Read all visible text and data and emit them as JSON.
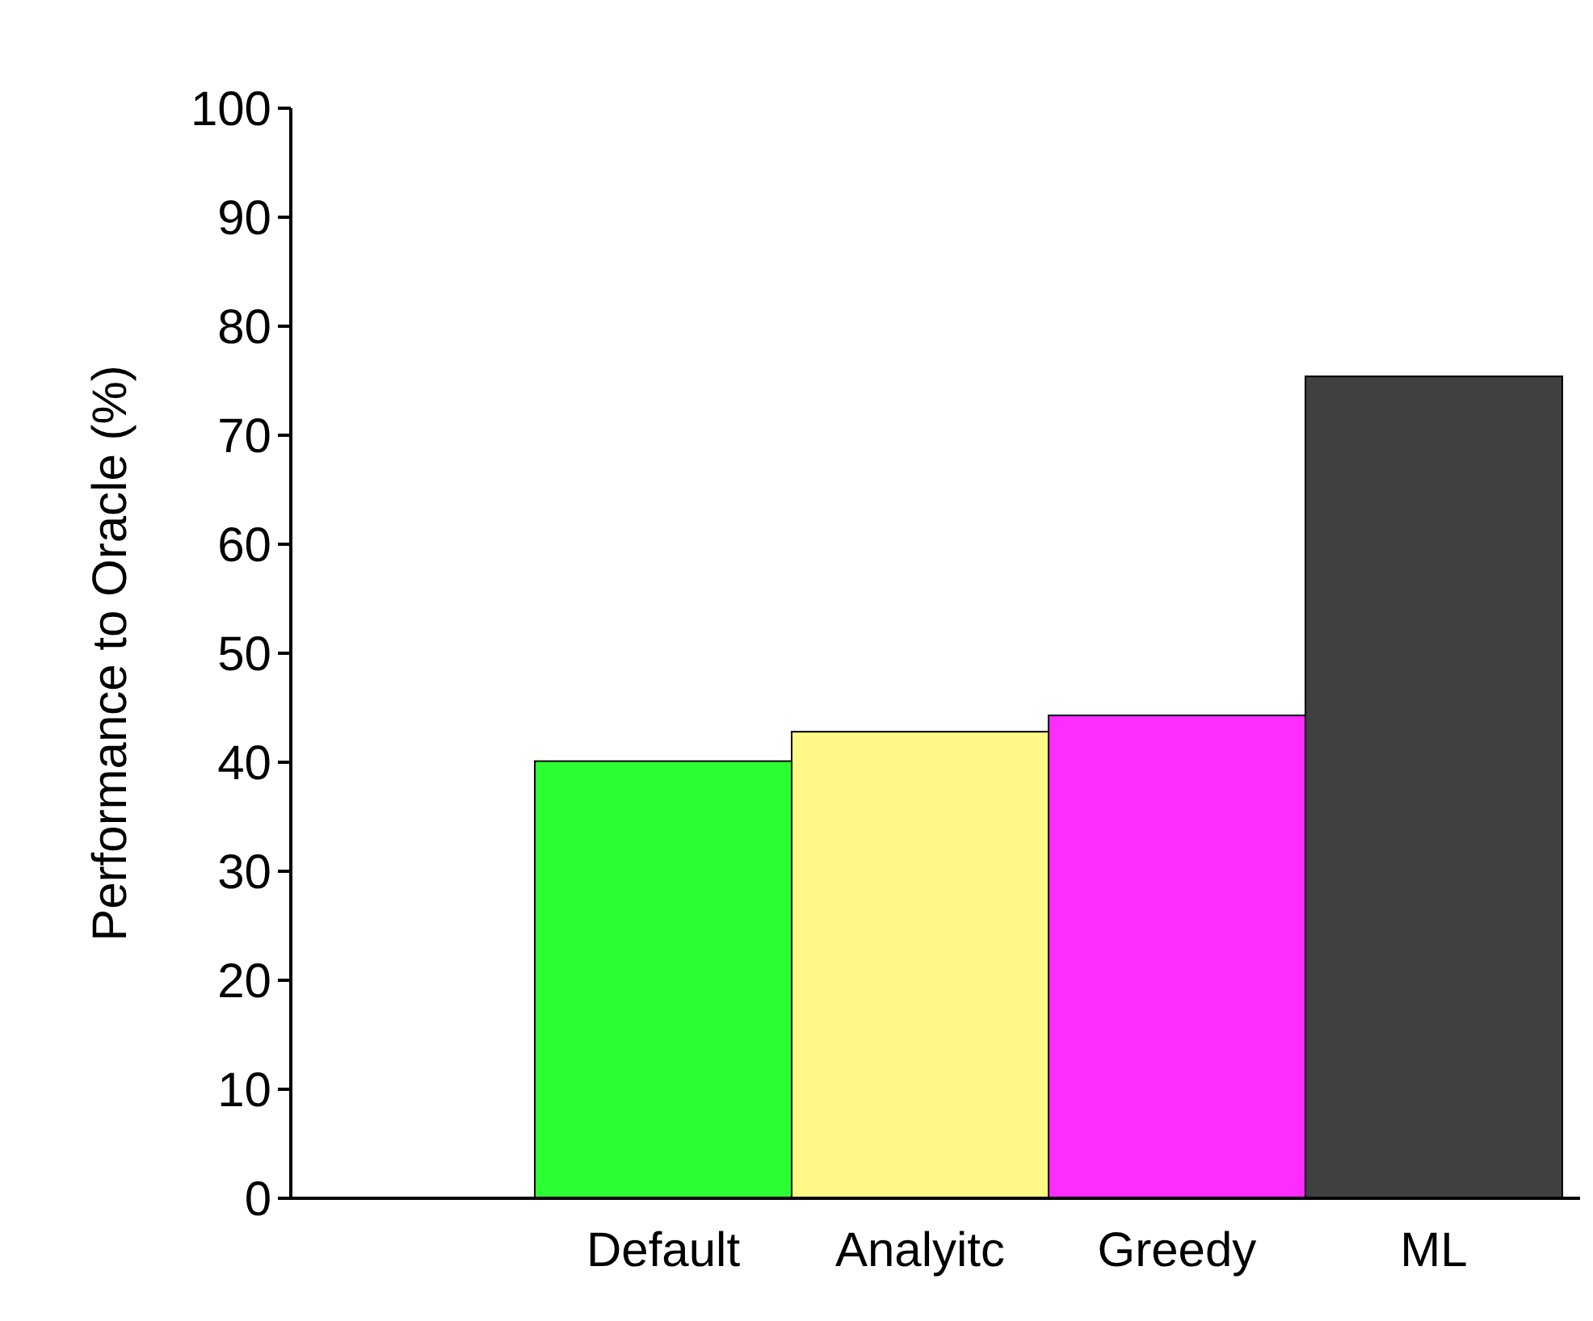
{
  "chart_data": {
    "type": "bar",
    "ylabel": "Performance to Oracle (%)",
    "categories": [
      "Default",
      "Analyitc",
      "Greedy",
      "ML"
    ],
    "values": [
      40.1,
      42.8,
      44.3,
      75.4
    ],
    "colors": [
      "#2bff33",
      "#fffa88",
      "#ff2cff",
      "#404040"
    ],
    "ylim": [
      0,
      100
    ],
    "yticks": [
      0,
      10,
      20,
      30,
      40,
      50,
      60,
      70,
      80,
      90,
      100
    ],
    "grid": false
  }
}
